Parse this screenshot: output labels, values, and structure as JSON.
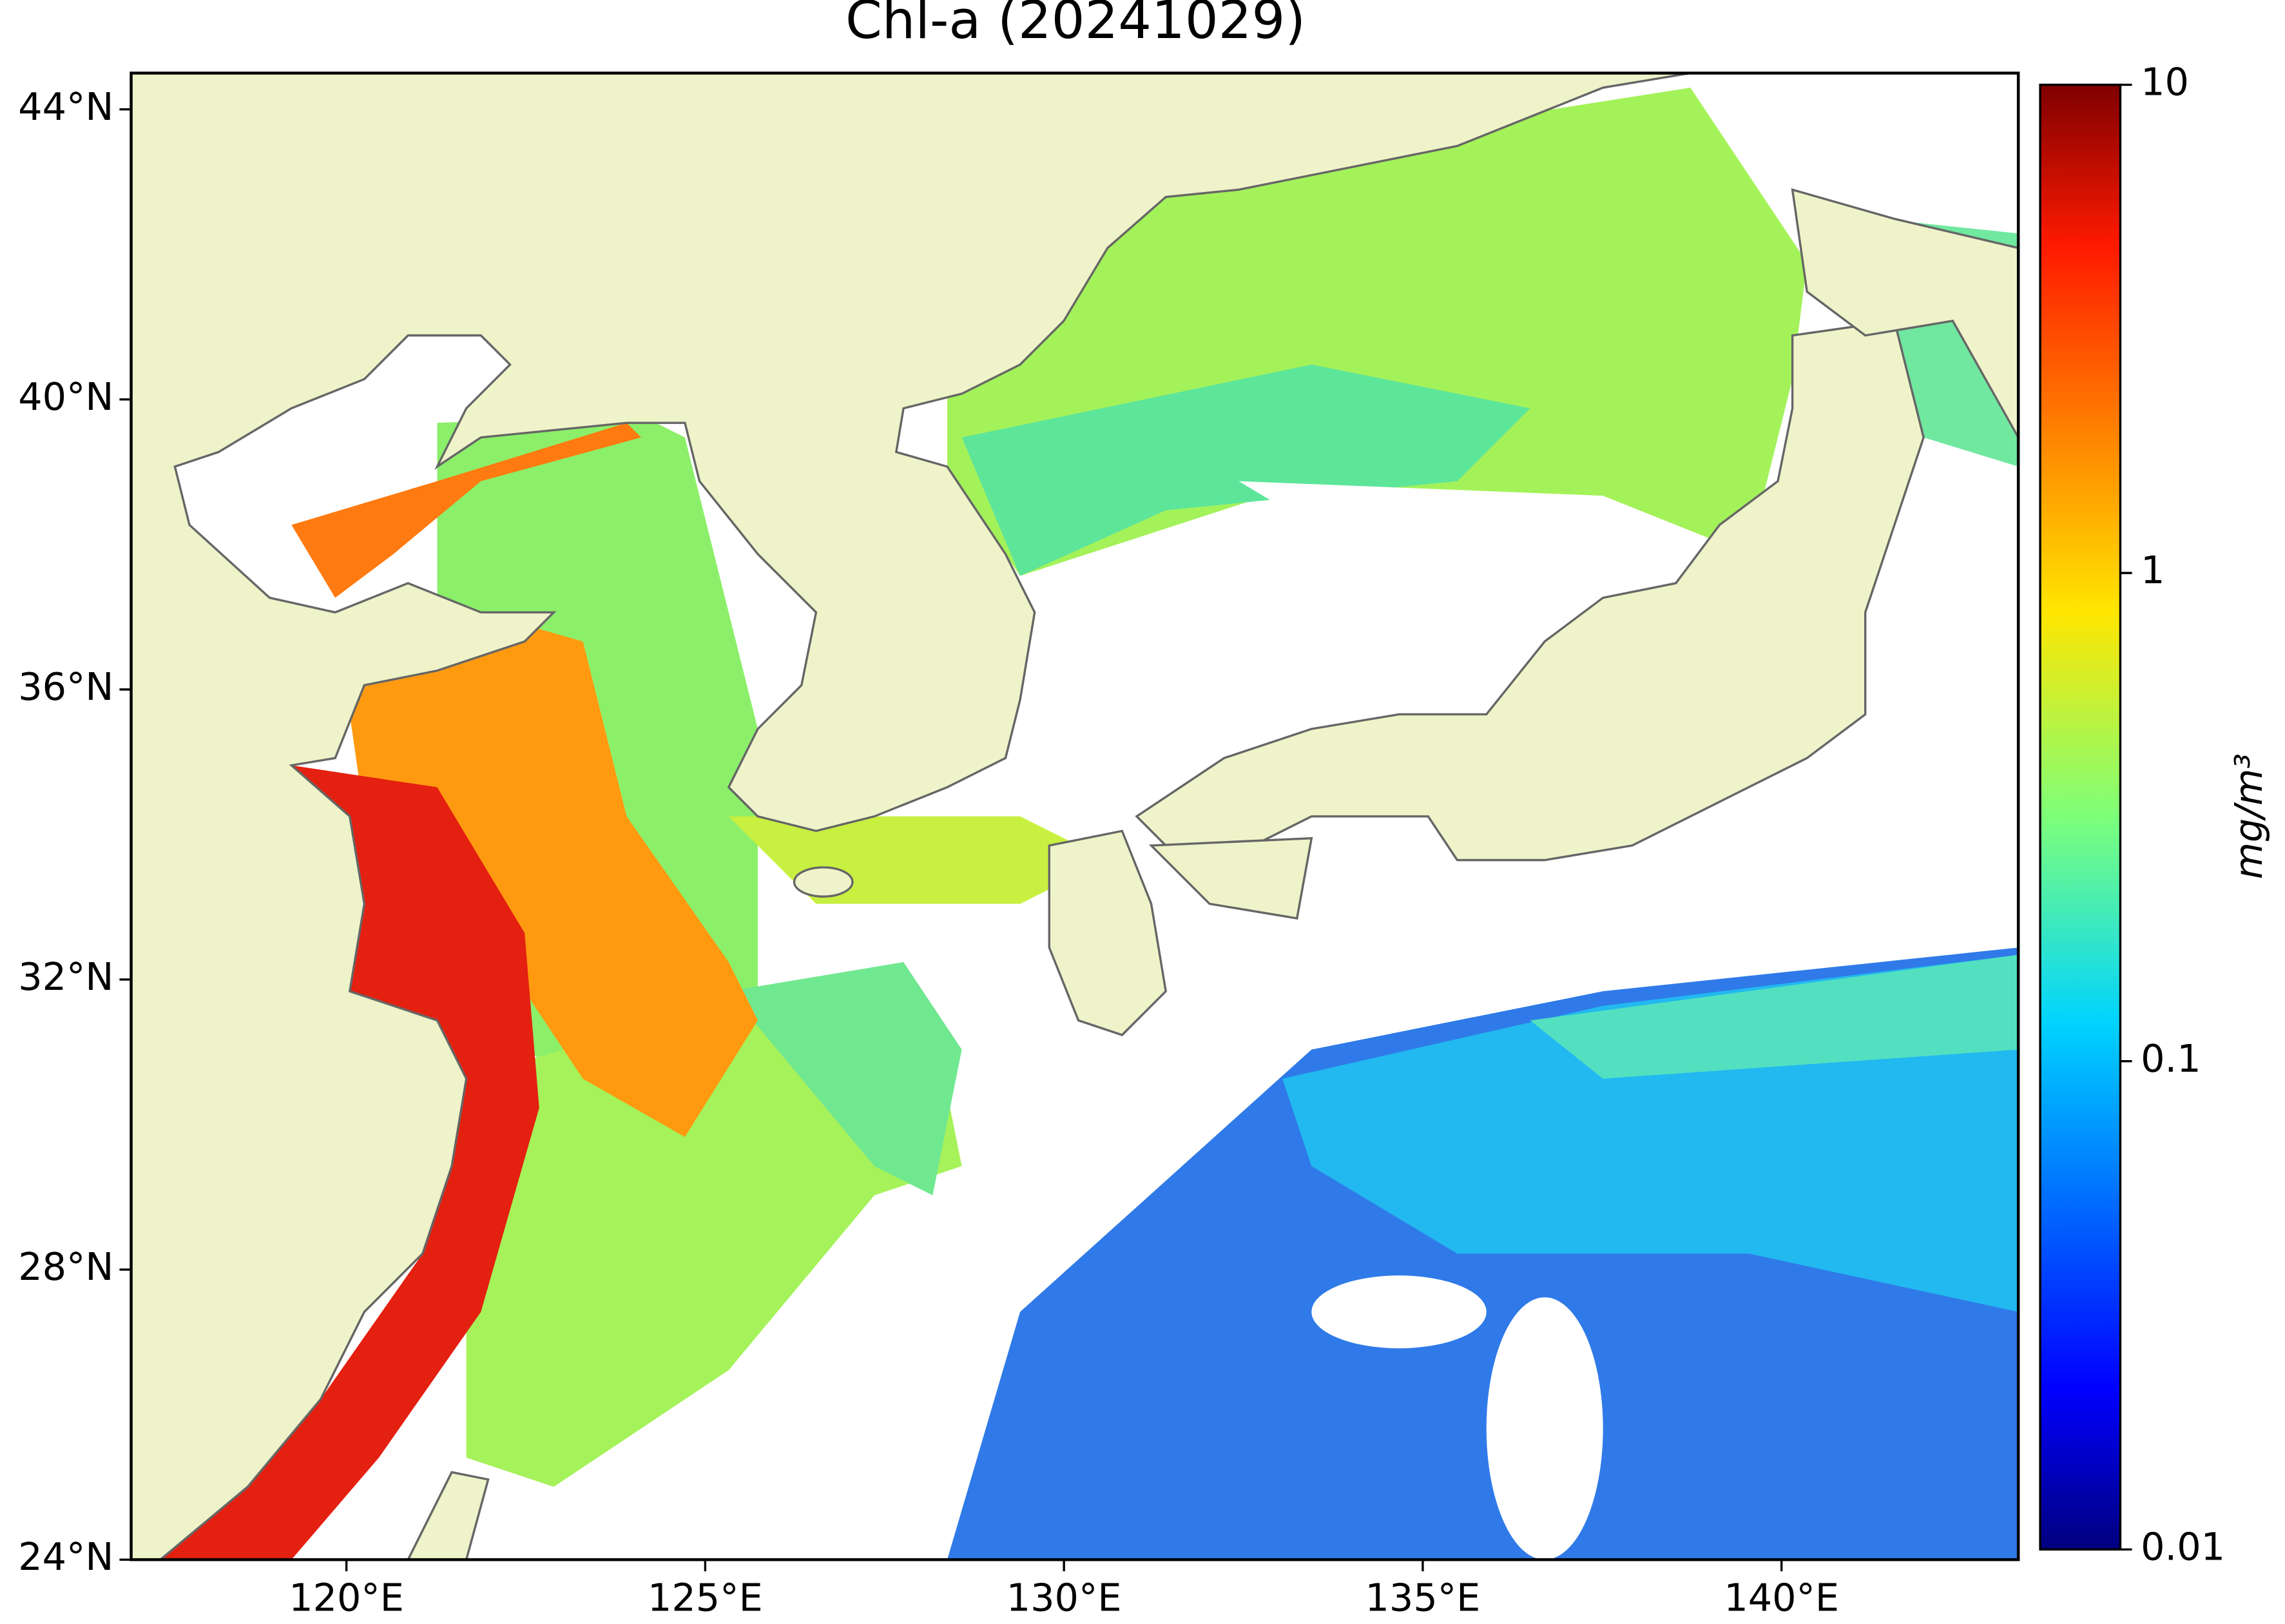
{
  "chart_data": {
    "type": "map",
    "title": "Chl-a (20241029)",
    "xlim": [
      117,
      143.3
    ],
    "ylim": [
      24,
      44.5
    ],
    "xticks": [
      {
        "value": 120,
        "label": "120°E"
      },
      {
        "value": 125,
        "label": "125°E"
      },
      {
        "value": 130,
        "label": "130°E"
      },
      {
        "value": 135,
        "label": "135°E"
      },
      {
        "value": 140,
        "label": "140°E"
      }
    ],
    "yticks": [
      {
        "value": 24,
        "label": "24°N"
      },
      {
        "value": 28,
        "label": "28°N"
      },
      {
        "value": 32,
        "label": "32°N"
      },
      {
        "value": 36,
        "label": "36°N"
      },
      {
        "value": 40,
        "label": "40°N"
      },
      {
        "value": 44,
        "label": "44°N"
      }
    ],
    "colorbar": {
      "scale": "log",
      "lim": [
        0.01,
        10
      ],
      "ticks": [
        0.01,
        0.1,
        1,
        10
      ],
      "label": "mg/m³"
    }
  }
}
